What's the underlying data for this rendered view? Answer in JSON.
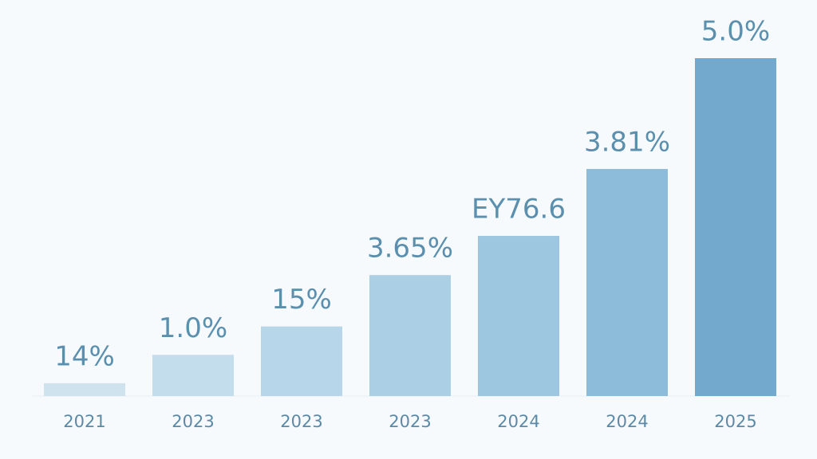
{
  "chart_data": {
    "type": "bar",
    "categories": [
      "2021",
      "2023",
      "2023",
      "2023",
      "2024",
      "2024",
      "2025"
    ],
    "values": [
      0.19,
      0.61,
      1.03,
      1.79,
      2.37,
      3.36,
      5.0
    ],
    "annotations": [
      "14%",
      "1.0%",
      "15%",
      "3.65%",
      "EY76.6",
      "3.81%",
      "5.0%"
    ],
    "colors": [
      "#cfe3ef",
      "#c4dded",
      "#b8d6ea",
      "#abcfe5",
      "#9dc6e0",
      "#8dbcda",
      "#72a9cd"
    ]
  }
}
